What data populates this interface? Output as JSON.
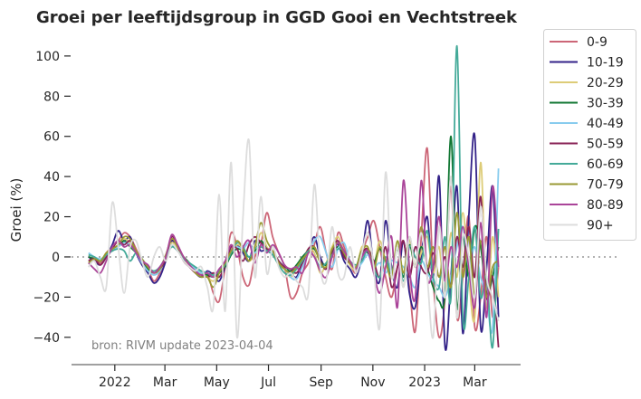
{
  "chart_data": {
    "type": "line",
    "title": "Groei per leeftijdsgroup in GGD Gooi en Vechtstreek",
    "xlabel": "",
    "ylabel": "Groei (%)",
    "annotation": "bron: RIVM update 2023-04-04",
    "xlim": [
      "2021-11-11",
      "2023-04-24"
    ],
    "ylim": [
      -53.6,
      107.6
    ],
    "yticks": [
      -40,
      -20,
      0,
      20,
      40,
      60,
      80,
      100
    ],
    "ytick_labels": [
      "−40",
      "−20",
      "0",
      "20",
      "40",
      "60",
      "80",
      "100"
    ],
    "xticks": [
      "2022-01-01",
      "2022-03-01",
      "2022-05-01",
      "2022-07-01",
      "2022-09-01",
      "2022-11-01",
      "2023-01-01",
      "2023-03-01"
    ],
    "xtick_labels": [
      "2022",
      "Mar",
      "May",
      "Jul",
      "Sep",
      "Nov",
      "2023",
      "Mar"
    ],
    "reference_line": {
      "y": 0,
      "style": "dotted",
      "color": "#999999"
    },
    "grid": false,
    "legend_placement": "outside-right-top",
    "x": [
      "2021-12-01",
      "2021-12-08",
      "2021-12-15",
      "2021-12-22",
      "2021-12-29",
      "2022-01-05",
      "2022-01-12",
      "2022-01-19",
      "2022-01-26",
      "2022-02-02",
      "2022-02-09",
      "2022-02-16",
      "2022-02-23",
      "2022-03-02",
      "2022-03-09",
      "2022-03-16",
      "2022-03-23",
      "2022-03-30",
      "2022-04-06",
      "2022-04-13",
      "2022-04-20",
      "2022-04-27",
      "2022-05-04",
      "2022-05-11",
      "2022-05-18",
      "2022-05-25",
      "2022-06-01",
      "2022-06-08",
      "2022-06-15",
      "2022-06-22",
      "2022-06-29",
      "2022-07-06",
      "2022-07-13",
      "2022-07-20",
      "2022-07-27",
      "2022-08-03",
      "2022-08-10",
      "2022-08-17",
      "2022-08-24",
      "2022-08-31",
      "2022-09-07",
      "2022-09-14",
      "2022-09-21",
      "2022-09-28",
      "2022-10-05",
      "2022-10-12",
      "2022-10-19",
      "2022-10-26",
      "2022-11-02",
      "2022-11-09",
      "2022-11-16",
      "2022-11-23",
      "2022-11-30",
      "2022-12-07",
      "2022-12-14",
      "2022-12-21",
      "2022-12-28",
      "2023-01-04",
      "2023-01-11",
      "2023-01-18",
      "2023-01-25",
      "2023-02-01",
      "2023-02-08",
      "2023-02-15",
      "2023-02-22",
      "2023-03-01",
      "2023-03-08",
      "2023-03-15",
      "2023-03-22",
      "2023-03-29"
    ],
    "series": [
      {
        "name": "0-9",
        "color": "#cc6677",
        "values": [
          -2,
          0,
          -3,
          2,
          5,
          8,
          12,
          10,
          4,
          -2,
          -6,
          -12,
          -8,
          0,
          8,
          4,
          -2,
          -5,
          -8,
          -10,
          -8,
          -18,
          -22,
          -5,
          12,
          5,
          -10,
          -14,
          0,
          6,
          22,
          10,
          2,
          -5,
          -20,
          -18,
          -8,
          -3,
          6,
          15,
          2,
          -6,
          12,
          5,
          -3,
          -8,
          2,
          10,
          18,
          5,
          -10,
          -20,
          -5,
          8,
          -15,
          -37,
          10,
          54,
          -10,
          -40,
          -20,
          35,
          -30,
          -10,
          20,
          -35,
          -20,
          10,
          -30,
          -5
        ]
      },
      {
        "name": "10-19",
        "color": "#332288",
        "values": [
          0,
          -2,
          -4,
          0,
          6,
          13,
          8,
          10,
          2,
          -4,
          -8,
          -13,
          -10,
          -2,
          8,
          4,
          0,
          -4,
          -8,
          -10,
          -7,
          -9,
          -12,
          -5,
          3,
          6,
          2,
          -2,
          8,
          3,
          4,
          2,
          -3,
          -5,
          -8,
          -10,
          -3,
          2,
          10,
          0,
          -5,
          3,
          6,
          -2,
          -6,
          -10,
          0,
          18,
          -5,
          -12,
          18,
          -5,
          -15,
          8,
          -18,
          -25,
          0,
          20,
          -10,
          40,
          -45,
          -10,
          35,
          -38,
          20,
          60,
          -35,
          -5,
          35,
          -30
        ]
      },
      {
        "name": "20-29",
        "color": "#ddcc77",
        "values": [
          1,
          0,
          -2,
          2,
          4,
          6,
          9,
          7,
          3,
          -2,
          -5,
          -8,
          -6,
          0,
          7,
          4,
          -1,
          -4,
          -6,
          -8,
          -10,
          -12,
          -8,
          -4,
          2,
          6,
          4,
          -2,
          2,
          12,
          5,
          2,
          -4,
          -6,
          -10,
          -6,
          -2,
          4,
          2,
          -8,
          -3,
          5,
          10,
          2,
          -4,
          -6,
          5,
          3,
          -4,
          8,
          -2,
          -10,
          5,
          -15,
          8,
          -5,
          2,
          10,
          -8,
          5,
          -20,
          12,
          -10,
          22,
          -10,
          -30,
          47,
          -25,
          10,
          -20
        ]
      },
      {
        "name": "30-39",
        "color": "#117733",
        "values": [
          0,
          -1,
          -2,
          1,
          3,
          5,
          8,
          5,
          2,
          -2,
          -6,
          -8,
          -6,
          0,
          6,
          3,
          0,
          -3,
          -6,
          -8,
          -9,
          -10,
          -8,
          -5,
          1,
          4,
          3,
          0,
          3,
          8,
          4,
          1,
          -3,
          -5,
          -7,
          -4,
          0,
          3,
          4,
          -2,
          -4,
          2,
          5,
          1,
          -3,
          -5,
          3,
          2,
          -3,
          4,
          -2,
          -8,
          4,
          -10,
          6,
          -5,
          5,
          -5,
          -15,
          -22,
          -18,
          60,
          -25,
          10,
          -10,
          15,
          5,
          -18,
          -10,
          5
        ]
      },
      {
        "name": "40-49",
        "color": "#88ccee",
        "values": [
          2,
          0,
          -1,
          1,
          3,
          5,
          7,
          6,
          2,
          -3,
          -7,
          -9,
          -7,
          0,
          6,
          3,
          -1,
          -3,
          -6,
          -8,
          -8,
          -9,
          -7,
          -3,
          3,
          5,
          4,
          7,
          2,
          6,
          4,
          2,
          -2,
          -5,
          -10,
          -11,
          -5,
          2,
          8,
          10,
          2,
          -5,
          4,
          7,
          -2,
          -6,
          -3,
          1,
          -5,
          -3,
          -8,
          -2,
          -3,
          -5,
          -10,
          -15,
          -2,
          -8,
          -12,
          -15,
          -20,
          -10,
          5,
          15,
          -5,
          5,
          -10,
          -20,
          -35,
          44
        ]
      },
      {
        "name": "50-59",
        "color": "#882255",
        "values": [
          -2,
          -1,
          -4,
          0,
          4,
          8,
          6,
          8,
          3,
          -2,
          -5,
          -8,
          -6,
          -1,
          10,
          5,
          -2,
          -5,
          -8,
          -9,
          -10,
          -8,
          -10,
          -4,
          5,
          4,
          -2,
          6,
          10,
          7,
          4,
          3,
          -2,
          -5,
          -6,
          -8,
          -3,
          4,
          5,
          -2,
          -6,
          3,
          8,
          0,
          -3,
          -5,
          2,
          4,
          -2,
          -10,
          5,
          -15,
          -5,
          8,
          -10,
          5,
          -5,
          -8,
          2,
          -10,
          0,
          -15,
          10,
          -5,
          15,
          -10,
          30,
          -20,
          -10,
          -45
        ]
      },
      {
        "name": "60-69",
        "color": "#44aa99",
        "values": [
          1,
          0,
          -2,
          1,
          3,
          4,
          3,
          -2,
          2,
          -1,
          -5,
          -7,
          -5,
          0,
          5,
          3,
          -1,
          -3,
          -5,
          -7,
          -8,
          -9,
          -7,
          -4,
          2,
          7,
          5,
          0,
          4,
          5,
          3,
          1,
          -4,
          -8,
          -9,
          -6,
          -2,
          3,
          0,
          -5,
          -3,
          1,
          4,
          3,
          -2,
          -4,
          -2,
          3,
          -6,
          -10,
          0,
          -8,
          5,
          -12,
          5,
          0,
          -3,
          13,
          -10,
          -15,
          10,
          -20,
          105,
          -30,
          -10,
          15,
          -20,
          -10,
          -45,
          14
        ]
      },
      {
        "name": "70-79",
        "color": "#999933",
        "values": [
          -3,
          -1,
          -2,
          2,
          4,
          6,
          10,
          9,
          3,
          -1,
          -5,
          -8,
          -6,
          1,
          9,
          5,
          0,
          -4,
          -8,
          -10,
          -10,
          -15,
          -8,
          -3,
          3,
          8,
          4,
          -2,
          5,
          17,
          8,
          3,
          -3,
          -6,
          -8,
          -5,
          -1,
          2,
          5,
          -3,
          -5,
          4,
          7,
          2,
          -3,
          -5,
          3,
          5,
          -6,
          5,
          -2,
          -10,
          8,
          -8,
          10,
          -5,
          15,
          -5,
          5,
          -10,
          5,
          -15,
          22,
          -10,
          10,
          -20,
          8,
          -20,
          -5,
          -2
        ]
      },
      {
        "name": "80-89",
        "color": "#aa4499",
        "values": [
          -3,
          -6,
          -8,
          -2,
          5,
          8,
          5,
          6,
          2,
          -2,
          -4,
          -8,
          -5,
          0,
          11,
          6,
          0,
          -4,
          -7,
          -9,
          -8,
          -10,
          -6,
          -2,
          6,
          0,
          5,
          8,
          -3,
          6,
          2,
          6,
          2,
          -4,
          -6,
          -5,
          -8,
          2,
          0,
          -7,
          -10,
          0,
          7,
          3,
          -2,
          -6,
          0,
          3,
          -8,
          -18,
          -5,
          10,
          -25,
          38,
          -5,
          -20,
          38,
          -10,
          -5,
          20,
          -12,
          5,
          -5,
          15,
          -5,
          -25,
          17,
          -30,
          35,
          -5
        ]
      },
      {
        "name": "90+",
        "color": "#dddddd",
        "values": [
          -5,
          -2,
          -10,
          -15,
          27,
          5,
          -18,
          5,
          8,
          -2,
          -10,
          0,
          5,
          -2,
          6,
          3,
          -2,
          -5,
          -7,
          -5,
          -15,
          -25,
          31,
          -27,
          47,
          -40,
          20,
          58,
          -10,
          30,
          -8,
          5,
          -5,
          -10,
          -8,
          -12,
          -15,
          -18,
          36,
          -5,
          -12,
          15,
          -8,
          -10,
          5,
          -8,
          2,
          12,
          -5,
          -35,
          42,
          -10,
          5,
          -15,
          10,
          -5,
          12,
          -10,
          -40,
          15,
          -20,
          40,
          -30,
          10,
          0,
          -20,
          25,
          -10,
          -20,
          -32
        ]
      }
    ]
  }
}
